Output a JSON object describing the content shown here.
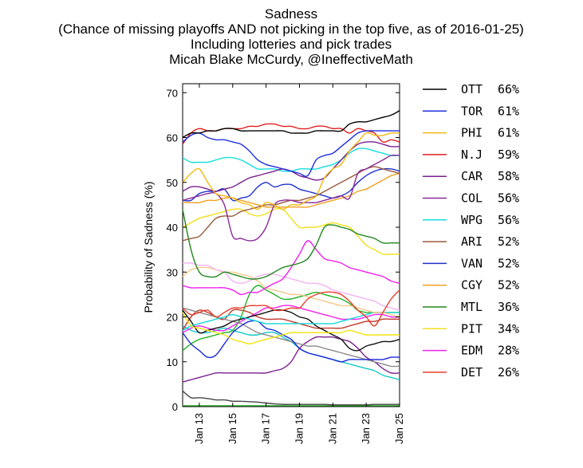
{
  "chart_data": {
    "type": "line",
    "title_lines": [
      "Sadness",
      "(Chance of missing playoffs AND not picking in the top five, as of 2016-01-25)",
      "Including lotteries and pick trades",
      "Micah Blake McCurdy, @IneffectiveMath"
    ],
    "xlabel": "",
    "ylabel": "Probability of Sadness (%)",
    "ylim": [
      0,
      72
    ],
    "yticks": [
      0,
      10,
      20,
      30,
      40,
      50,
      60,
      70
    ],
    "x": [
      12,
      12.5,
      13,
      13.5,
      14,
      14.5,
      15,
      15.5,
      16,
      16.5,
      17,
      17.5,
      18,
      18.5,
      19,
      19.5,
      20,
      20.5,
      21,
      21.5,
      22,
      22.5,
      23,
      23.5,
      24,
      24.5,
      25
    ],
    "xlim": [
      12,
      25
    ],
    "xticks": [
      13,
      15,
      17,
      19,
      21,
      23,
      25
    ],
    "xtick_labels": [
      "Jan 13",
      "Jan 15",
      "Jan 17",
      "Jan 19",
      "Jan 21",
      "Jan 23",
      "Jan 25"
    ],
    "grid": false,
    "legend_position": "right",
    "series": [
      {
        "name": "OTT",
        "label": "66%",
        "color": "#000000",
        "values": [
          60,
          61,
          61,
          61.5,
          61.5,
          62,
          62,
          61.5,
          61.5,
          61.5,
          61.5,
          61.5,
          61.5,
          61,
          61,
          61,
          61.5,
          61.5,
          61.5,
          61.5,
          63,
          63.5,
          63.5,
          64,
          64.5,
          65,
          66
        ]
      },
      {
        "name": "TOR",
        "label": "61%",
        "color": "#1f2fe0",
        "values": [
          59,
          60.5,
          61,
          60,
          59.5,
          59.5,
          59,
          58.5,
          57,
          55,
          54,
          53.5,
          53,
          52.5,
          52,
          51.5,
          55,
          56,
          56.5,
          58,
          59.5,
          61,
          61.5,
          61.5,
          61.5,
          61.5,
          61.5
        ]
      },
      {
        "name": "PHI",
        "label": "61%",
        "color": "#f2b90f",
        "values": [
          50,
          52,
          53,
          50,
          47.5,
          47,
          46.5,
          45.5,
          45,
          44,
          45.5,
          45,
          44,
          45,
          45,
          46,
          47,
          51,
          53,
          54,
          57,
          59,
          61,
          60.5,
          60.5,
          61,
          61
        ]
      },
      {
        "name": "N.J",
        "label": "59%",
        "color": "#e01f1f",
        "values": [
          58.5,
          61,
          62,
          61.5,
          61.5,
          62,
          62,
          62,
          62.5,
          62.5,
          63,
          63,
          62.5,
          62.5,
          62,
          62,
          62.5,
          62.5,
          62,
          62,
          61,
          62,
          61.5,
          61,
          59,
          59.5,
          59
        ]
      },
      {
        "name": "CAR",
        "label": "58%",
        "color": "#7a1f8f",
        "values": [
          48,
          49,
          49,
          48.5,
          48,
          48.5,
          49,
          50,
          51,
          51.5,
          52,
          52.5,
          53,
          52.5,
          51.5,
          51,
          50.5,
          51,
          53,
          55,
          57,
          58.5,
          59,
          59,
          58.5,
          58,
          58
        ]
      },
      {
        "name": "COL",
        "label": "56%",
        "color": "#8b2a9a",
        "values": [
          46,
          46.5,
          47,
          47.5,
          47.5,
          45,
          38,
          37.5,
          37,
          37.5,
          40,
          45,
          46,
          46,
          45.5,
          45.5,
          45.5,
          46,
          46.5,
          47,
          46.5,
          52,
          53,
          54,
          55,
          56,
          56
        ]
      },
      {
        "name": "WPG",
        "label": "56%",
        "color": "#15dede",
        "values": [
          55.5,
          54.5,
          54.5,
          54.5,
          55,
          55.5,
          55.5,
          55,
          54,
          53,
          53,
          53,
          52.5,
          52.5,
          53,
          53,
          53,
          53.5,
          54,
          55,
          56.5,
          57.5,
          57.5,
          57,
          56.5,
          56,
          56
        ]
      },
      {
        "name": "ARI",
        "label": "52%",
        "color": "#9b5a3c",
        "values": [
          37,
          37.5,
          38,
          40,
          42,
          42.5,
          42.5,
          43.5,
          44,
          44.5,
          45,
          45,
          45.5,
          46,
          46,
          46.5,
          47,
          48,
          49,
          50,
          51,
          52,
          53,
          53.5,
          53,
          52.5,
          52
        ]
      },
      {
        "name": "VAN",
        "label": "52%",
        "color": "#2233cc",
        "values": [
          46,
          46,
          47.5,
          48,
          48,
          48.5,
          46,
          46.5,
          47,
          49,
          50,
          49,
          49.5,
          49.5,
          48.5,
          48,
          47.5,
          47,
          46.5,
          47,
          48,
          50,
          51.5,
          52.5,
          53,
          53,
          52.5
        ]
      },
      {
        "name": "CGY",
        "label": "52%",
        "color": "#f0a020",
        "values": [
          45.5,
          45.5,
          45.5,
          46,
          46,
          46.5,
          46.5,
          46,
          45.5,
          45,
          44.5,
          44.5,
          44.5,
          44.5,
          44.5,
          44.5,
          45,
          45.5,
          46,
          46.5,
          47,
          48,
          48.5,
          49.5,
          50.5,
          51.5,
          52
        ]
      },
      {
        "name": "MTL",
        "label": "36%",
        "color": "#22881f",
        "values": [
          44,
          35,
          30,
          29,
          29,
          30,
          29.5,
          29,
          28.5,
          28.5,
          29,
          30,
          31,
          31.5,
          32,
          33,
          36,
          40,
          40.5,
          40,
          39.5,
          38.5,
          38,
          37.5,
          36.5,
          36.5,
          36.5
        ]
      },
      {
        "name": "PIT",
        "label": "34%",
        "color": "#f2df1a",
        "values": [
          40,
          41,
          42,
          42.5,
          43,
          43.5,
          44,
          44,
          43,
          42.5,
          43,
          44,
          44,
          42,
          40,
          40,
          40,
          40.5,
          41,
          40.5,
          40,
          38,
          36,
          35,
          34,
          34,
          34
        ]
      },
      {
        "name": "EDM",
        "label": "28%",
        "color": "#ee1fee",
        "values": [
          27,
          26.5,
          26.5,
          26.5,
          26.5,
          26.5,
          26,
          25,
          25.5,
          25.5,
          26.5,
          27.5,
          28.5,
          31,
          34,
          37,
          35,
          33,
          32.5,
          32,
          31,
          30.5,
          30,
          29.5,
          29,
          28,
          27.5
        ]
      },
      {
        "name": "DET",
        "label": "26%",
        "color": "#e83e2a",
        "values": [
          22,
          20.5,
          21,
          21.5,
          20,
          21,
          22,
          22,
          22.5,
          22.5,
          22.5,
          21.5,
          21.5,
          22,
          22,
          24,
          25,
          25.5,
          25.5,
          25,
          23.5,
          21.5,
          20,
          18,
          21,
          24,
          26
        ]
      },
      {
        "name": "",
        "color": "#f4b3f4",
        "values": [
          32,
          32,
          31.5,
          31.5,
          30.5,
          30,
          28,
          27.5,
          28,
          29,
          29.5,
          29.5,
          29,
          28.5,
          28,
          27.5,
          27.5,
          27,
          26,
          25.5,
          25,
          24.5,
          24,
          23.5,
          22.5,
          22,
          21.5
        ]
      },
      {
        "name": "",
        "color": "#f5c98a",
        "values": [
          29,
          30.5,
          31,
          31,
          30.5,
          30,
          30,
          29.5,
          29,
          28,
          26.5,
          26,
          25.5,
          25,
          25,
          24.5,
          24,
          23.5,
          23,
          22.5,
          22.5,
          22,
          21.5,
          21,
          21,
          20.5,
          20
        ]
      },
      {
        "name": "",
        "color": "#f2e40d",
        "values": [
          21,
          18,
          17.5,
          17,
          16.5,
          16,
          15,
          14.5,
          14,
          14.5,
          15,
          15.5,
          16,
          16.5,
          16.5,
          16.5,
          16.5,
          16.5,
          16.5,
          16.5,
          17,
          16.5,
          16,
          16,
          16,
          16,
          16
        ]
      },
      {
        "name": "",
        "color": "#14d8d8",
        "values": [
          17,
          18,
          18.5,
          19,
          19.5,
          20,
          20.5,
          20,
          19.5,
          19,
          18.5,
          18.5,
          18.5,
          18.5,
          18.5,
          18.5,
          18.5,
          18.5,
          18.5,
          19,
          19.5,
          20,
          20.5,
          21,
          21,
          21,
          21
        ]
      },
      {
        "name": "",
        "color": "#111111",
        "values": [
          21.5,
          19,
          16.5,
          17,
          17.5,
          18,
          19,
          19.5,
          20,
          20.5,
          21,
          21.5,
          21.5,
          21,
          20,
          19.5,
          18,
          17,
          16,
          15,
          13,
          12.5,
          13.5,
          14,
          14.5,
          14.5,
          15
        ]
      },
      {
        "name": "",
        "color": "#1a2ad8",
        "values": [
          16.5,
          14,
          12.5,
          11,
          11.5,
          14,
          16.5,
          18,
          19,
          19,
          17.5,
          17,
          16,
          15,
          13,
          12,
          11.5,
          11,
          10.5,
          10,
          10.5,
          10.5,
          10.5,
          10.5,
          10.5,
          11,
          11
        ]
      },
      {
        "name": "",
        "color": "#8a8a8a",
        "values": [
          22,
          21.5,
          21,
          20.5,
          20,
          19.5,
          19,
          18.5,
          17.5,
          16.5,
          16,
          15.5,
          15,
          14.5,
          14,
          13.5,
          13.5,
          13,
          12.5,
          12,
          11.5,
          11,
          10.5,
          10,
          9.5,
          9,
          9
        ]
      },
      {
        "name": "",
        "color": "#ee22ee",
        "values": [
          16.5,
          17.5,
          18,
          17.5,
          17,
          17,
          18,
          19,
          20,
          21,
          22,
          22,
          22.5,
          22.5,
          22,
          21.5,
          21,
          20.5,
          20,
          19.5,
          19.5,
          19.5,
          20,
          20.5,
          20.5,
          20,
          20
        ]
      },
      {
        "name": "",
        "color": "#22b022",
        "values": [
          12.5,
          14,
          15,
          15.5,
          16,
          16.5,
          17,
          20,
          25,
          27,
          26,
          25,
          24,
          24,
          24.5,
          25,
          25.5,
          25,
          24.5,
          24,
          23,
          21.5,
          21,
          21,
          21,
          21,
          21
        ]
      },
      {
        "name": "",
        "color": "#c0392b",
        "values": [
          17,
          20,
          21.5,
          21,
          20,
          19.5,
          21.5,
          21.5,
          21,
          20,
          19.5,
          19.5,
          19.5,
          19,
          18.5,
          18,
          17.5,
          17.5,
          17.5,
          17.5,
          18,
          18.5,
          19,
          19,
          19.5,
          19.5,
          19.5
        ]
      },
      {
        "name": "",
        "color": "#7a1f8f",
        "values": [
          5.5,
          6,
          6.5,
          7,
          7.5,
          7.5,
          7.5,
          7.5,
          7.5,
          7.5,
          7.5,
          8,
          8.5,
          10,
          13,
          14.5,
          15.5,
          15.5,
          15.5,
          15,
          14.5,
          13,
          11,
          10,
          8.5,
          7.5,
          7.5
        ]
      },
      {
        "name": "",
        "color": "#15c8c8",
        "values": [
          18,
          17,
          16.5,
          16.5,
          17,
          17.5,
          17,
          16.5,
          16,
          16,
          16.5,
          16.5,
          15.5,
          14.5,
          13,
          12,
          11.5,
          11,
          10.5,
          10,
          9.5,
          9,
          8.5,
          8,
          7,
          6.5,
          6
        ]
      },
      {
        "name": "",
        "color": "#444444",
        "values": [
          3.5,
          2,
          2,
          1.8,
          1.5,
          1.5,
          1.2,
          1.2,
          1.1,
          1,
          0.8,
          0.6,
          0.5,
          0.5,
          0.5,
          0.5,
          0.5,
          0.5,
          0.4,
          0.4,
          0.4,
          0.4,
          0.4,
          0.5,
          0.5,
          0.5,
          0.5
        ]
      },
      {
        "name": "",
        "color": "#22aa22",
        "values": [
          0.2,
          0.2,
          0.2,
          0.2,
          0.2,
          0.2,
          0.2,
          0.2,
          0.2,
          0.2,
          0.2,
          0.2,
          0.2,
          0.2,
          0.2,
          0.2,
          0.2,
          0.2,
          0.2,
          0.2,
          0.2,
          0.2,
          0.2,
          0.2,
          0.2,
          0.2,
          0.2
        ]
      }
    ]
  }
}
